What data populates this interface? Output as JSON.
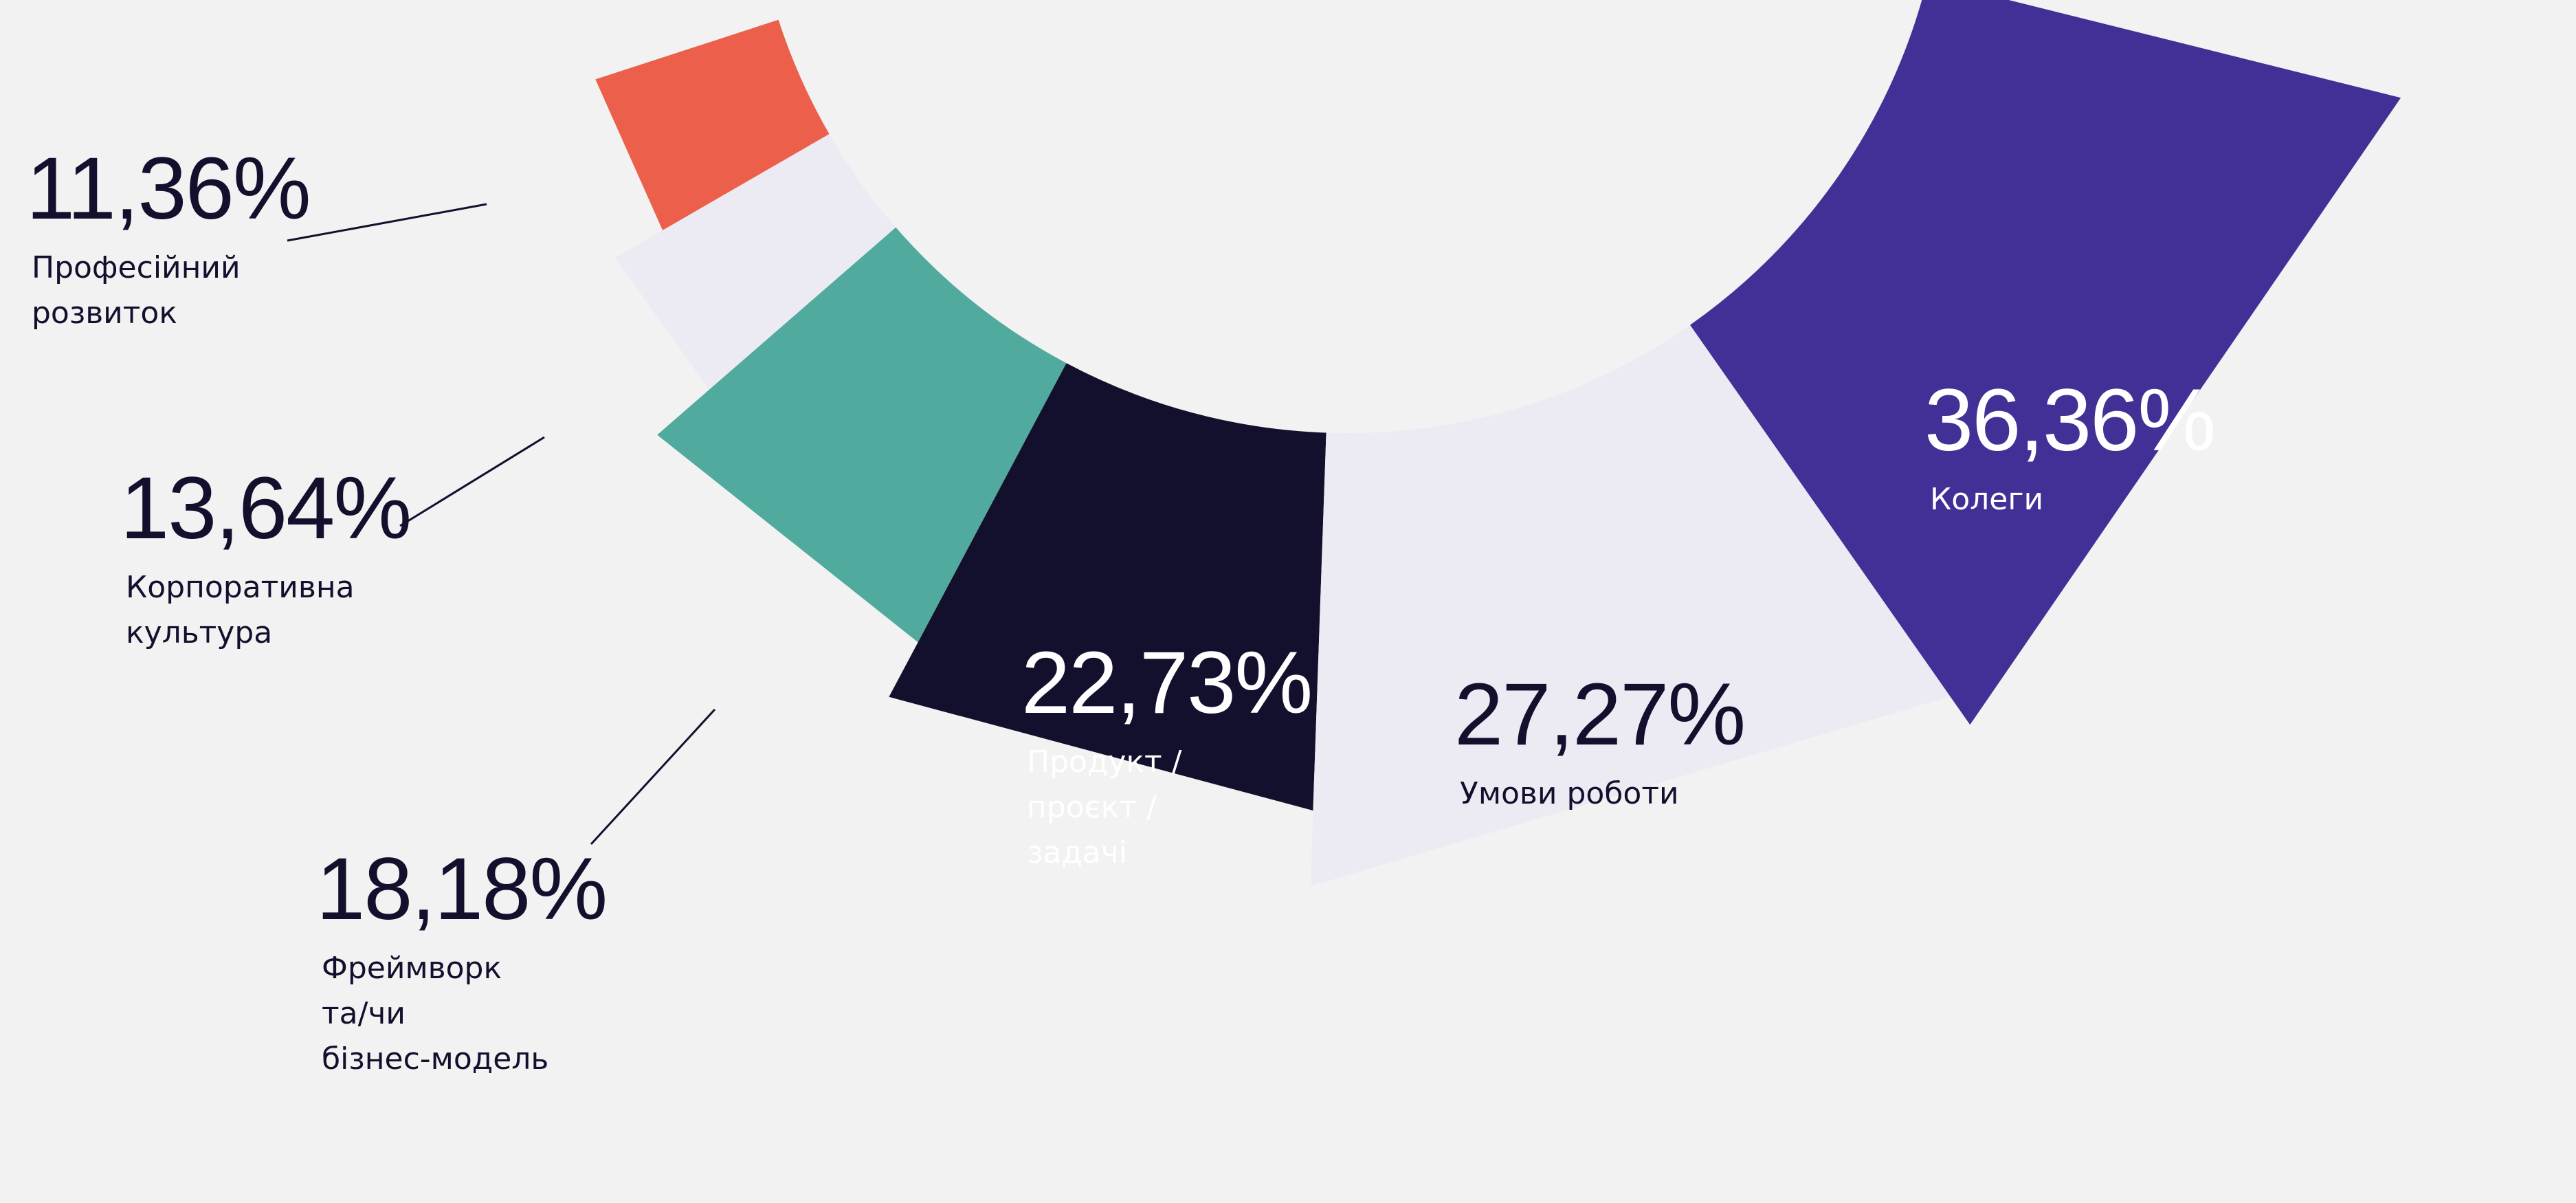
{
  "chart_data": {
    "type": "pie",
    "variant": "nightingale-half-ring",
    "slices": [
      {
        "label_lines": [
          "Професійний",
          "розвиток"
        ],
        "value": 11.36,
        "value_label": "11,36%",
        "color": "#ec604b",
        "text_color": "#13102e"
      },
      {
        "label_lines": [
          "Корпоративна",
          "культура"
        ],
        "value": 13.64,
        "value_label": "13,64%",
        "color": "#ecebf4",
        "text_color": "#13102e"
      },
      {
        "label_lines": [
          "Фреймворк",
          "та/чи",
          "бізнес-модель"
        ],
        "value": 18.18,
        "value_label": "18,18%",
        "color": "#50aa9d",
        "text_color": "#13102e"
      },
      {
        "label_lines": [
          "Продукт /",
          "проєкт /",
          "задачі"
        ],
        "value": 22.73,
        "value_label": "22,73%",
        "color": "#13102e",
        "text_color": "#ffffff"
      },
      {
        "label_lines": [
          "Умови роботи"
        ],
        "value": 27.27,
        "value_label": "27,27%",
        "color": "#ecebf4",
        "text_color": "#13102e"
      },
      {
        "label_lines": [
          "Колеги"
        ],
        "value": 36.36,
        "value_label": "36,36%",
        "color": "#423097",
        "text_color": "#ffffff"
      }
    ]
  }
}
